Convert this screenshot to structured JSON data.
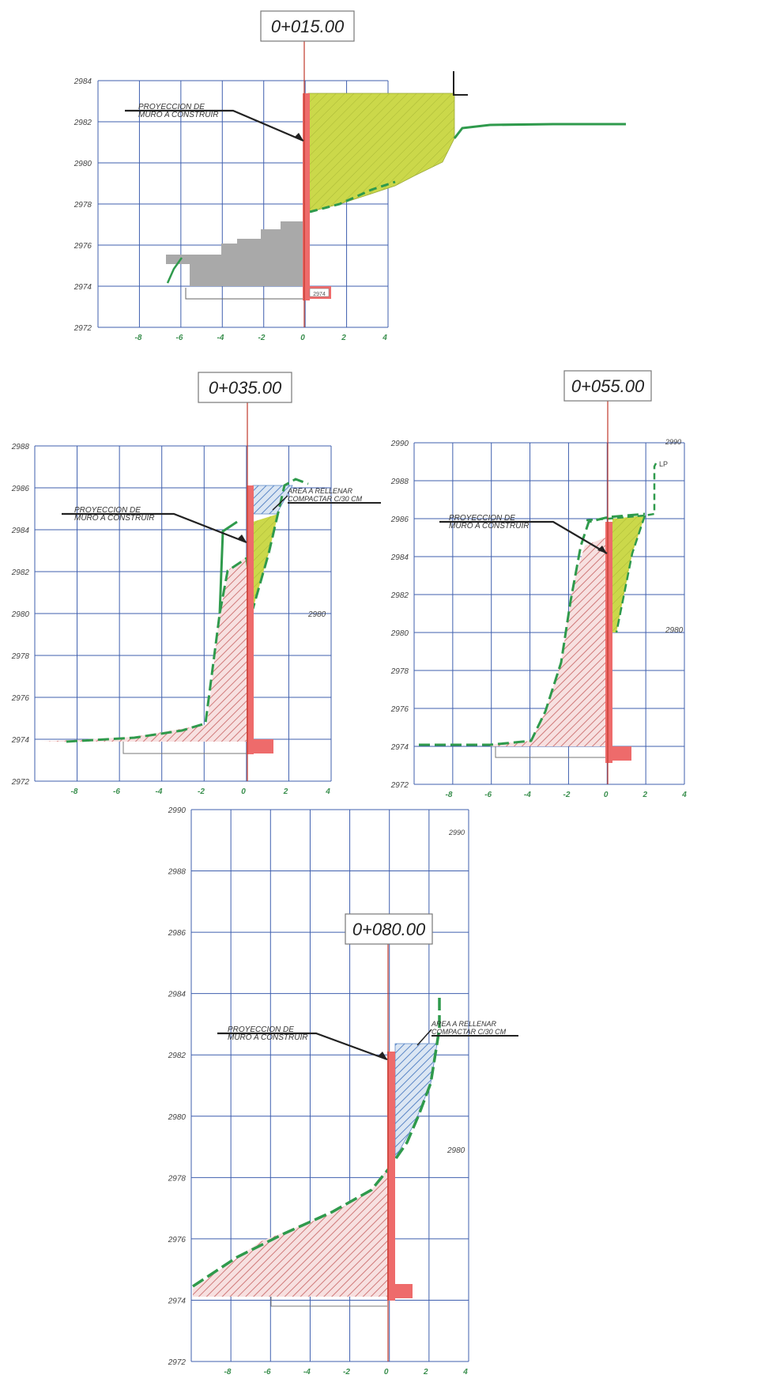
{
  "sections": [
    {
      "id": "s015",
      "station": "0+015.00",
      "y_ticks": [
        "2984",
        "2982",
        "2980",
        "2978",
        "2976",
        "2974",
        "2972"
      ],
      "x_ticks": [
        "-8",
        "-6",
        "-4",
        "-2",
        "0",
        "2",
        "4"
      ],
      "annotations": [
        "PROYECCION DE",
        "MURO A CONSTRUIR"
      ],
      "extra_labels": [
        "2974"
      ]
    },
    {
      "id": "s035",
      "station": "0+035.00",
      "y_ticks": [
        "2988",
        "2986",
        "2984",
        "2982",
        "2980",
        "2978",
        "2976",
        "2974",
        "2972"
      ],
      "x_ticks": [
        "-8",
        "-6",
        "-4",
        "-2",
        "0",
        "2",
        "4"
      ],
      "annotations": [
        "PROYECCION DE",
        "MURO A CONSTRUIR",
        "AREA A RELLENAR",
        "COMPACTAR C/30 CM"
      ],
      "extra_labels": [
        "2980"
      ]
    },
    {
      "id": "s055",
      "station": "0+055.00",
      "y_ticks": [
        "2990",
        "2988",
        "2986",
        "2984",
        "2982",
        "2980",
        "2978",
        "2976",
        "2974",
        "2972"
      ],
      "x_ticks": [
        "-8",
        "-6",
        "-4",
        "-2",
        "0",
        "2",
        "4"
      ],
      "annotations": [
        "PROYECCION DE",
        "MURO A CONSTRUIR"
      ],
      "extra_labels": [
        "2990",
        "LP",
        "2980"
      ]
    },
    {
      "id": "s080",
      "station": "0+080.00",
      "y_ticks": [
        "2990",
        "2988",
        "2986",
        "2984",
        "2982",
        "2980",
        "2978",
        "2976",
        "2974",
        "2972"
      ],
      "x_ticks": [
        "-8",
        "-6",
        "-4",
        "-2",
        "0",
        "2",
        "4"
      ],
      "annotations": [
        "PROYECCION DE",
        "MURO A CONSTRUIR",
        "AREA A RELLENAR",
        "COMPACTAR C/30 CM"
      ],
      "extra_labels": [
        "2990",
        "2980"
      ]
    }
  ],
  "colors": {
    "grid": "#3f5fae",
    "axis_line": "#c0392b",
    "wall": "#ee6b6b",
    "terrain": "#2f9a4c",
    "fill_yellow": "#cbd84a",
    "hatch_red": "#d98888",
    "hatch_blue": "#5a86c6",
    "gray_mass": "#a9a9a9",
    "tick_green": "#3a8f4e"
  }
}
